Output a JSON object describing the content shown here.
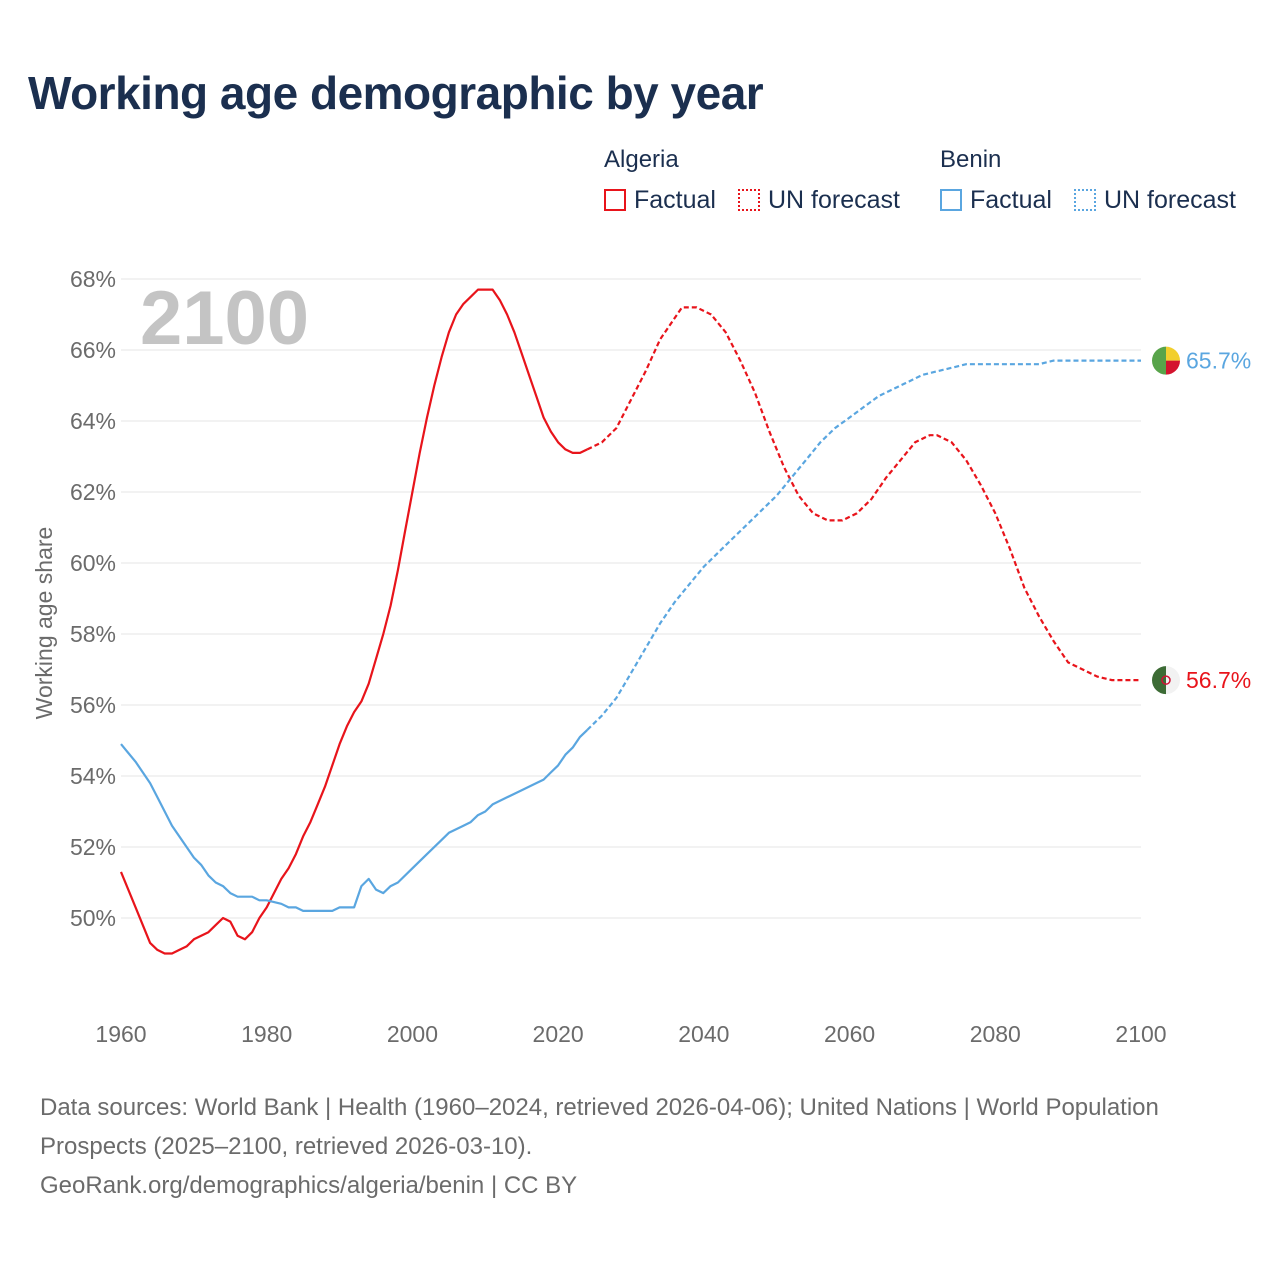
{
  "title": "Working age demographic by year",
  "legend": {
    "algeria": {
      "name": "Algeria",
      "factual": "Factual",
      "forecast": "UN forecast"
    },
    "benin": {
      "name": "Benin",
      "factual": "Factual",
      "forecast": "UN forecast"
    }
  },
  "colors": {
    "algeria": "#e8141b",
    "benin": "#5aa6e0",
    "year_watermark": "#c4c4c4",
    "grid": "#e6e6e6",
    "axis_text": "#6b6b6b"
  },
  "source": {
    "line1": "Data sources: World Bank | Health (1960–2024, retrieved 2026-04-06); United Nations | World Population Prospects (2025–2100, retrieved 2026-03-10).",
    "line2": "GeoRank.org/demographics/algeria/benin | CC BY"
  },
  "chart_data": {
    "type": "line",
    "title": "Working age demographic by year",
    "xlabel": "",
    "ylabel": "Working age share",
    "year_label": "2100",
    "xlim": [
      1960,
      2100
    ],
    "ylim": [
      48,
      68
    ],
    "x_ticks": [
      "1960",
      "1980",
      "2000",
      "2020",
      "2040",
      "2060",
      "2080",
      "2100"
    ],
    "y_ticks": [
      50,
      52,
      54,
      56,
      58,
      60,
      62,
      64,
      66,
      68
    ],
    "y_tick_labels": [
      "50%",
      "52%",
      "54%",
      "56%",
      "58%",
      "60%",
      "62%",
      "64%",
      "66%",
      "68%"
    ],
    "grid": true,
    "series": [
      {
        "name": "Algeria",
        "end_label": "56.7%",
        "factual": [
          [
            1960,
            51.3
          ],
          [
            1962,
            50.3
          ],
          [
            1964,
            49.3
          ],
          [
            1965,
            49.1
          ],
          [
            1966,
            49.0
          ],
          [
            1967,
            49.0
          ],
          [
            1968,
            49.1
          ],
          [
            1969,
            49.2
          ],
          [
            1970,
            49.4
          ],
          [
            1972,
            49.6
          ],
          [
            1973,
            49.8
          ],
          [
            1974,
            50.0
          ],
          [
            1975,
            49.9
          ],
          [
            1976,
            49.5
          ],
          [
            1977,
            49.4
          ],
          [
            1978,
            49.6
          ],
          [
            1979,
            50.0
          ],
          [
            1980,
            50.3
          ],
          [
            1981,
            50.7
          ],
          [
            1982,
            51.1
          ],
          [
            1983,
            51.4
          ],
          [
            1984,
            51.8
          ],
          [
            1985,
            52.3
          ],
          [
            1986,
            52.7
          ],
          [
            1987,
            53.2
          ],
          [
            1988,
            53.7
          ],
          [
            1989,
            54.3
          ],
          [
            1990,
            54.9
          ],
          [
            1991,
            55.4
          ],
          [
            1992,
            55.8
          ],
          [
            1993,
            56.1
          ],
          [
            1994,
            56.6
          ],
          [
            1995,
            57.3
          ],
          [
            1996,
            58.0
          ],
          [
            1997,
            58.8
          ],
          [
            1998,
            59.8
          ],
          [
            1999,
            60.9
          ],
          [
            2000,
            62.0
          ],
          [
            2001,
            63.1
          ],
          [
            2002,
            64.1
          ],
          [
            2003,
            65.0
          ],
          [
            2004,
            65.8
          ],
          [
            2005,
            66.5
          ],
          [
            2006,
            67.0
          ],
          [
            2007,
            67.3
          ],
          [
            2008,
            67.5
          ],
          [
            2009,
            67.7
          ],
          [
            2010,
            67.7
          ],
          [
            2011,
            67.7
          ],
          [
            2012,
            67.4
          ],
          [
            2013,
            67.0
          ],
          [
            2014,
            66.5
          ],
          [
            2015,
            65.9
          ],
          [
            2016,
            65.3
          ],
          [
            2017,
            64.7
          ],
          [
            2018,
            64.1
          ],
          [
            2019,
            63.7
          ],
          [
            2020,
            63.4
          ],
          [
            2021,
            63.2
          ],
          [
            2022,
            63.1
          ],
          [
            2023,
            63.1
          ],
          [
            2024,
            63.2
          ]
        ],
        "forecast": [
          [
            2024,
            63.2
          ],
          [
            2026,
            63.4
          ],
          [
            2028,
            63.8
          ],
          [
            2030,
            64.6
          ],
          [
            2032,
            65.4
          ],
          [
            2034,
            66.3
          ],
          [
            2036,
            66.9
          ],
          [
            2037,
            67.2
          ],
          [
            2039,
            67.2
          ],
          [
            2041,
            67.0
          ],
          [
            2043,
            66.5
          ],
          [
            2045,
            65.7
          ],
          [
            2047,
            64.8
          ],
          [
            2049,
            63.7
          ],
          [
            2051,
            62.7
          ],
          [
            2053,
            61.9
          ],
          [
            2055,
            61.4
          ],
          [
            2057,
            61.2
          ],
          [
            2059,
            61.2
          ],
          [
            2061,
            61.4
          ],
          [
            2063,
            61.8
          ],
          [
            2065,
            62.4
          ],
          [
            2067,
            62.9
          ],
          [
            2069,
            63.4
          ],
          [
            2071,
            63.6
          ],
          [
            2072,
            63.6
          ],
          [
            2074,
            63.4
          ],
          [
            2076,
            62.9
          ],
          [
            2078,
            62.2
          ],
          [
            2080,
            61.4
          ],
          [
            2082,
            60.4
          ],
          [
            2084,
            59.3
          ],
          [
            2086,
            58.5
          ],
          [
            2088,
            57.8
          ],
          [
            2090,
            57.2
          ],
          [
            2092,
            57.0
          ],
          [
            2094,
            56.8
          ],
          [
            2096,
            56.7
          ],
          [
            2100,
            56.7
          ]
        ]
      },
      {
        "name": "Benin",
        "end_label": "65.7%",
        "factual": [
          [
            1960,
            54.9
          ],
          [
            1962,
            54.4
          ],
          [
            1964,
            53.8
          ],
          [
            1965,
            53.4
          ],
          [
            1966,
            53.0
          ],
          [
            1967,
            52.6
          ],
          [
            1968,
            52.3
          ],
          [
            1969,
            52.0
          ],
          [
            1970,
            51.7
          ],
          [
            1971,
            51.5
          ],
          [
            1972,
            51.2
          ],
          [
            1973,
            51.0
          ],
          [
            1974,
            50.9
          ],
          [
            1975,
            50.7
          ],
          [
            1976,
            50.6
          ],
          [
            1978,
            50.6
          ],
          [
            1979,
            50.5
          ],
          [
            1980,
            50.5
          ],
          [
            1982,
            50.4
          ],
          [
            1983,
            50.3
          ],
          [
            1984,
            50.3
          ],
          [
            1985,
            50.2
          ],
          [
            1989,
            50.2
          ],
          [
            1990,
            50.3
          ],
          [
            1992,
            50.3
          ],
          [
            1993,
            50.9
          ],
          [
            1994,
            51.1
          ],
          [
            1995,
            50.8
          ],
          [
            1996,
            50.7
          ],
          [
            1997,
            50.9
          ],
          [
            1998,
            51.0
          ],
          [
            2000,
            51.4
          ],
          [
            2002,
            51.8
          ],
          [
            2004,
            52.2
          ],
          [
            2005,
            52.4
          ],
          [
            2007,
            52.6
          ],
          [
            2008,
            52.7
          ],
          [
            2009,
            52.9
          ],
          [
            2010,
            53.0
          ],
          [
            2011,
            53.2
          ],
          [
            2013,
            53.4
          ],
          [
            2015,
            53.6
          ],
          [
            2017,
            53.8
          ],
          [
            2018,
            53.9
          ],
          [
            2019,
            54.1
          ],
          [
            2020,
            54.3
          ],
          [
            2021,
            54.6
          ],
          [
            2022,
            54.8
          ],
          [
            2023,
            55.1
          ],
          [
            2024,
            55.3
          ]
        ],
        "forecast": [
          [
            2024,
            55.3
          ],
          [
            2026,
            55.7
          ],
          [
            2028,
            56.2
          ],
          [
            2030,
            56.9
          ],
          [
            2032,
            57.6
          ],
          [
            2034,
            58.3
          ],
          [
            2036,
            58.9
          ],
          [
            2038,
            59.4
          ],
          [
            2040,
            59.9
          ],
          [
            2042,
            60.3
          ],
          [
            2044,
            60.7
          ],
          [
            2046,
            61.1
          ],
          [
            2048,
            61.5
          ],
          [
            2050,
            61.9
          ],
          [
            2052,
            62.4
          ],
          [
            2054,
            62.9
          ],
          [
            2056,
            63.4
          ],
          [
            2058,
            63.8
          ],
          [
            2060,
            64.1
          ],
          [
            2062,
            64.4
          ],
          [
            2064,
            64.7
          ],
          [
            2066,
            64.9
          ],
          [
            2068,
            65.1
          ],
          [
            2070,
            65.3
          ],
          [
            2072,
            65.4
          ],
          [
            2074,
            65.5
          ],
          [
            2076,
            65.6
          ],
          [
            2080,
            65.6
          ],
          [
            2086,
            65.6
          ],
          [
            2088,
            65.7
          ],
          [
            2100,
            65.7
          ]
        ]
      }
    ]
  }
}
